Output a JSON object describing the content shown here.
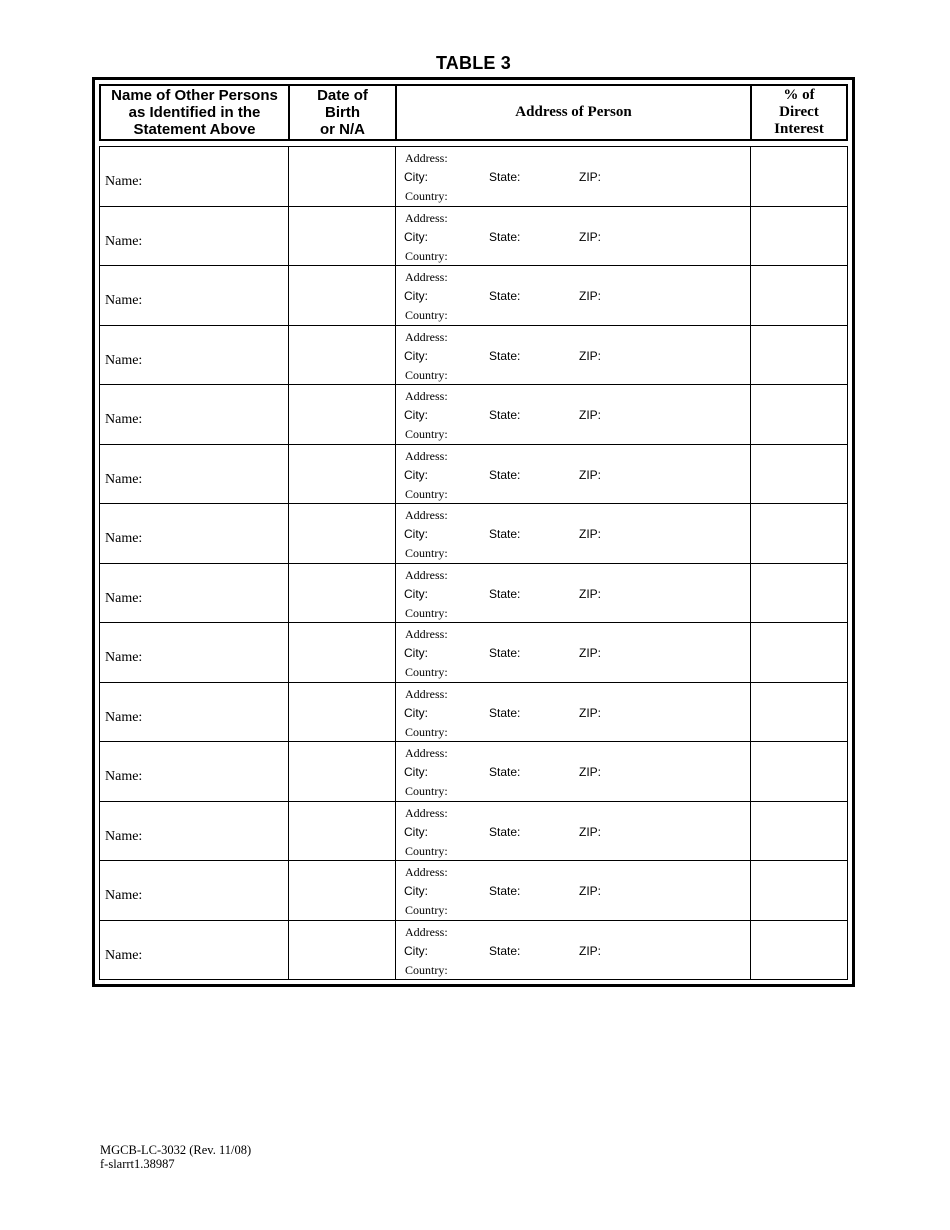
{
  "page": {
    "title": "TABLE 3",
    "footer": {
      "form_number": "MGCB-LC-3032 (Rev. 11/08)",
      "file_reference": "f-slarrt1.38987"
    }
  },
  "colors": {
    "ink": "#000000",
    "paper": "#ffffff"
  },
  "table": {
    "columns": [
      {
        "id": "name",
        "header": "Name of Other Persons\nas Identified in the\nStatement Above"
      },
      {
        "id": "dob",
        "header": "Date of\nBirth\nor N/A"
      },
      {
        "id": "address",
        "header": "Address of Person"
      },
      {
        "id": "interest",
        "header": "% of\nDirect\nInterest"
      }
    ],
    "row_count": 14,
    "row_labels": {
      "name": "Name:",
      "address": "Address:",
      "city": "City:",
      "state": "State:",
      "zip": "ZIP:",
      "country": "Country:"
    },
    "row_values": {
      "name": "",
      "dob": "",
      "address": "",
      "city": "",
      "state": "",
      "zip": "",
      "country": "",
      "interest": ""
    }
  }
}
